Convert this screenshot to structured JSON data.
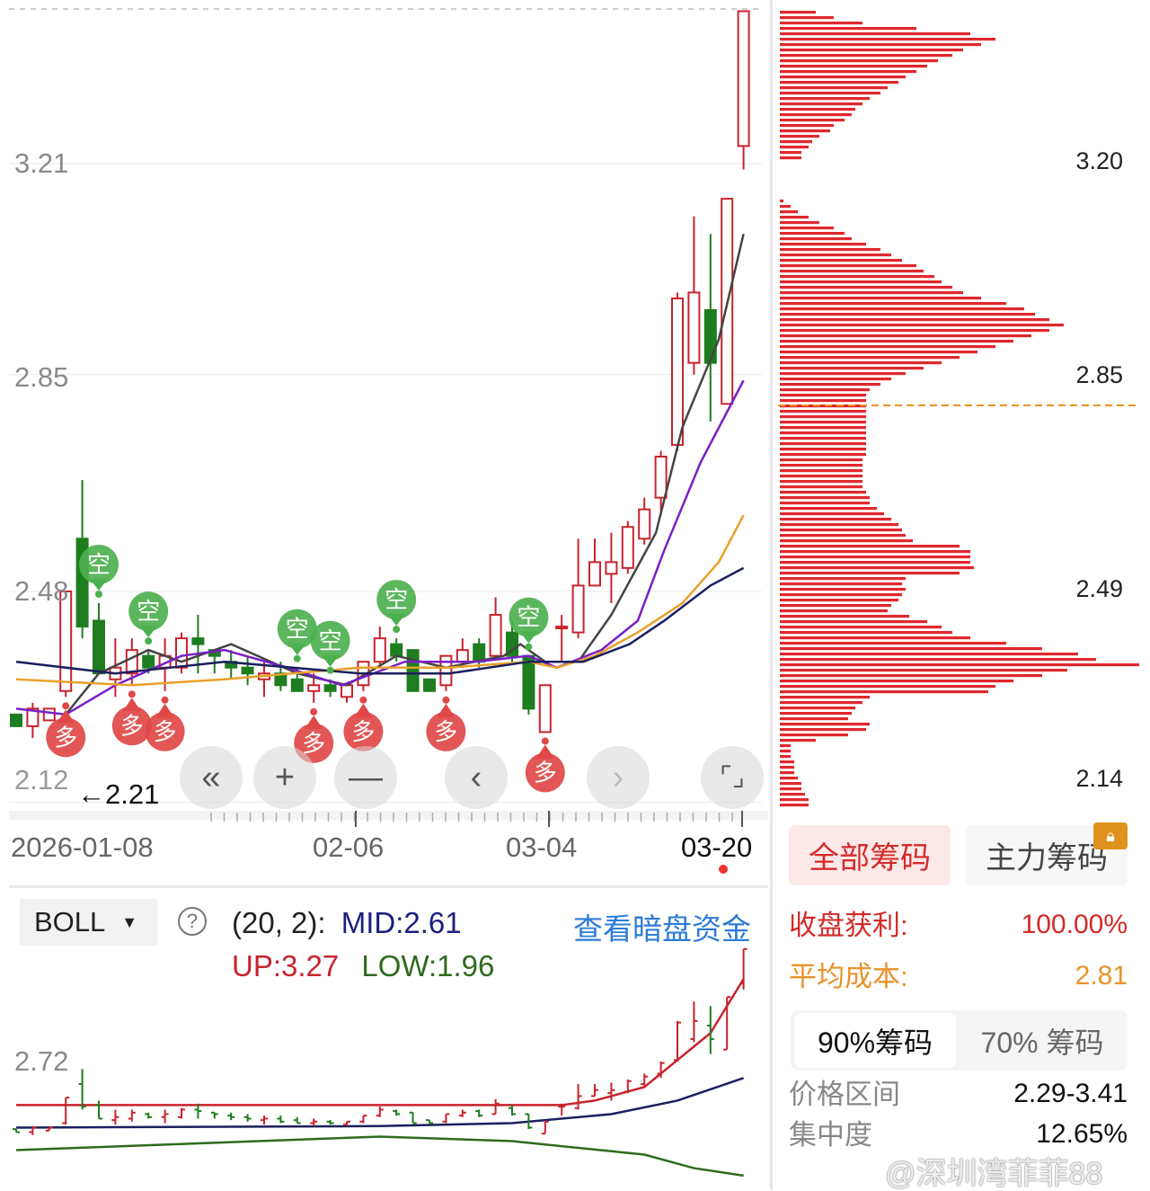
{
  "chart_data": [
    {
      "type": "candlestick",
      "title": "",
      "y_ticks": [
        "3.21",
        "2.85",
        "2.48",
        "2.12"
      ],
      "ylim": [
        2.12,
        3.47
      ],
      "x_tick_labels": [
        "2026-01-08",
        "02-06",
        "03-04",
        "03-20"
      ],
      "last_low_marker": "←2.21",
      "colors": {
        "up": "#c8232c",
        "down": "#1e7d1e",
        "ma1": "#444444",
        "ma2": "#7a1fc7",
        "ma3": "#e8a12a",
        "ma4": "#1b1f5e"
      },
      "candles_ohlc": [
        [
          2.27,
          2.27,
          2.25,
          2.25
        ],
        [
          2.25,
          2.29,
          2.23,
          2.28
        ],
        [
          2.26,
          2.28,
          2.26,
          2.28
        ],
        [
          2.31,
          2.48,
          2.3,
          2.48
        ],
        [
          2.57,
          2.67,
          2.4,
          2.42
        ],
        [
          2.43,
          2.46,
          2.34,
          2.34
        ],
        [
          2.33,
          2.4,
          2.3,
          2.35
        ],
        [
          2.34,
          2.4,
          2.32,
          2.38
        ],
        [
          2.37,
          2.38,
          2.34,
          2.35
        ],
        [
          2.35,
          2.4,
          2.31,
          2.37
        ],
        [
          2.35,
          2.41,
          2.34,
          2.4
        ],
        [
          2.4,
          2.44,
          2.34,
          2.39
        ],
        [
          2.38,
          2.38,
          2.34,
          2.37
        ],
        [
          2.36,
          2.38,
          2.33,
          2.35
        ],
        [
          2.35,
          2.37,
          2.32,
          2.34
        ],
        [
          2.33,
          2.36,
          2.3,
          2.34
        ],
        [
          2.34,
          2.36,
          2.31,
          2.32
        ],
        [
          2.33,
          2.35,
          2.31,
          2.31
        ],
        [
          2.31,
          2.34,
          2.29,
          2.32
        ],
        [
          2.32,
          2.33,
          2.3,
          2.31
        ],
        [
          2.3,
          2.32,
          2.29,
          2.32
        ],
        [
          2.32,
          2.36,
          2.31,
          2.36
        ],
        [
          2.36,
          2.42,
          2.35,
          2.4
        ],
        [
          2.39,
          2.4,
          2.36,
          2.37
        ],
        [
          2.38,
          2.38,
          2.31,
          2.31
        ],
        [
          2.33,
          2.33,
          2.31,
          2.31
        ],
        [
          2.32,
          2.37,
          2.31,
          2.37
        ],
        [
          2.36,
          2.4,
          2.35,
          2.38
        ],
        [
          2.39,
          2.4,
          2.35,
          2.36
        ],
        [
          2.37,
          2.47,
          2.37,
          2.44
        ],
        [
          2.41,
          2.43,
          2.36,
          2.37
        ],
        [
          2.37,
          2.37,
          2.27,
          2.28
        ],
        [
          2.24,
          2.32,
          2.24,
          2.32
        ],
        [
          2.42,
          2.44,
          2.36,
          2.42
        ],
        [
          2.41,
          2.57,
          2.4,
          2.49
        ],
        [
          2.49,
          2.57,
          2.49,
          2.53
        ],
        [
          2.51,
          2.58,
          2.46,
          2.53
        ],
        [
          2.52,
          2.6,
          2.51,
          2.59
        ],
        [
          2.57,
          2.64,
          2.56,
          2.62
        ],
        [
          2.64,
          2.72,
          2.61,
          2.71
        ],
        [
          2.73,
          2.99,
          2.72,
          2.98
        ],
        [
          2.87,
          3.12,
          2.85,
          2.99
        ],
        [
          2.96,
          3.09,
          2.77,
          2.87
        ],
        [
          2.8,
          3.15,
          2.8,
          3.15
        ],
        [
          3.24,
          3.47,
          3.2,
          3.47
        ]
      ],
      "moving_averages": [
        {
          "color_key": "ma1",
          "points": [
            [
              3,
              2.27
            ],
            [
              5,
              2.34
            ],
            [
              8,
              2.38
            ],
            [
              10,
              2.36
            ],
            [
              13,
              2.39
            ],
            [
              17,
              2.34
            ],
            [
              20,
              2.32
            ],
            [
              23,
              2.37
            ],
            [
              26,
              2.35
            ],
            [
              29.5,
              2.37
            ],
            [
              30.5,
              2.39
            ],
            [
              32,
              2.36
            ],
            [
              34,
              2.36
            ],
            [
              36,
              2.44
            ],
            [
              38.7,
              2.58
            ],
            [
              40.3,
              2.76
            ],
            [
              42.5,
              2.91
            ],
            [
              44,
              3.09
            ]
          ]
        },
        {
          "color_key": "ma2",
          "points": [
            [
              0,
              2.28
            ],
            [
              3,
              2.27
            ],
            [
              6,
              2.32
            ],
            [
              10,
              2.37
            ],
            [
              12.6,
              2.38
            ],
            [
              16.4,
              2.35
            ],
            [
              19.7,
              2.32
            ],
            [
              23.5,
              2.36
            ],
            [
              27.8,
              2.36
            ],
            [
              31,
              2.37
            ],
            [
              32.7,
              2.35
            ],
            [
              35.4,
              2.38
            ],
            [
              37.6,
              2.43
            ],
            [
              39.2,
              2.55
            ],
            [
              41.4,
              2.7
            ],
            [
              44,
              2.84
            ]
          ]
        },
        {
          "color_key": "ma3",
          "points": [
            [
              0,
              2.33
            ],
            [
              7,
              2.32
            ],
            [
              12.6,
              2.33
            ],
            [
              20.8,
              2.35
            ],
            [
              26.2,
              2.35
            ],
            [
              31,
              2.36
            ],
            [
              32.7,
              2.35
            ],
            [
              35,
              2.37
            ],
            [
              37.6,
              2.41
            ],
            [
              40.3,
              2.46
            ],
            [
              42.5,
              2.53
            ],
            [
              44,
              2.61
            ]
          ]
        },
        {
          "color_key": "ma4",
          "points": [
            [
              0,
              2.36
            ],
            [
              6,
              2.34
            ],
            [
              12.6,
              2.36
            ],
            [
              20.8,
              2.34
            ],
            [
              26.2,
              2.34
            ],
            [
              31,
              2.36
            ],
            [
              34.3,
              2.36
            ],
            [
              37.1,
              2.39
            ],
            [
              39.2,
              2.43
            ],
            [
              42,
              2.49
            ],
            [
              44,
              2.52
            ]
          ]
        }
      ],
      "signals": [
        {
          "index": 5,
          "type": "short",
          "label": "空"
        },
        {
          "index": 8,
          "type": "short",
          "label": "空"
        },
        {
          "index": 17,
          "type": "short",
          "label": "空"
        },
        {
          "index": 19,
          "type": "short",
          "label": "空"
        },
        {
          "index": 23,
          "type": "short",
          "label": "空"
        },
        {
          "index": 31,
          "type": "short",
          "label": "空"
        },
        {
          "index": 3,
          "type": "long",
          "label": "多"
        },
        {
          "index": 7,
          "type": "long",
          "label": "多"
        },
        {
          "index": 9,
          "type": "long",
          "label": "多"
        },
        {
          "index": 18,
          "type": "long",
          "label": "多"
        },
        {
          "index": 21,
          "type": "long",
          "label": "多"
        },
        {
          "index": 26,
          "type": "long",
          "label": "多"
        },
        {
          "index": 32,
          "type": "long",
          "label": "多"
        }
      ]
    },
    {
      "type": "bar",
      "orientation": "horizontal",
      "title": "",
      "price_labels": [
        "3.20",
        "2.85",
        "2.49",
        "2.14"
      ],
      "avg_cost_line": 2.81,
      "color": "#e0282e",
      "levels_percent_top_to_bottom": [
        10,
        15,
        23,
        38,
        53,
        60,
        56,
        51,
        48,
        44,
        41,
        38,
        35,
        33,
        30,
        28,
        25,
        23,
        21,
        20,
        18,
        15,
        14,
        11,
        9,
        8,
        6,
        6,
        0,
        0,
        0,
        0,
        0,
        0,
        0,
        1,
        3,
        5,
        8,
        11,
        15,
        18,
        20,
        24,
        28,
        31,
        34,
        38,
        40,
        43,
        45,
        48,
        51,
        56,
        63,
        68,
        71,
        75,
        79,
        75,
        70,
        65,
        60,
        55,
        50,
        45,
        40,
        35,
        31,
        28,
        25,
        24,
        24,
        24,
        24,
        24,
        24,
        24,
        24,
        24,
        24,
        24,
        24,
        23,
        23,
        23,
        23,
        23,
        23,
        24,
        25,
        25,
        27,
        29,
        31,
        33,
        34,
        35,
        37,
        50,
        53,
        53,
        53,
        54,
        50,
        35,
        34,
        35,
        34,
        33,
        31,
        30,
        36,
        41,
        45,
        48,
        53,
        63,
        73,
        83,
        88,
        100,
        80,
        73,
        65,
        60,
        58,
        25,
        23,
        21,
        20,
        19,
        25,
        24,
        19,
        10,
        3,
        3,
        3,
        4,
        4,
        4,
        5,
        6,
        6,
        7,
        8,
        8
      ]
    },
    {
      "type": "line",
      "title": "",
      "indicator": "BOLL",
      "y_ticks": [
        "2.72"
      ],
      "series": [
        {
          "name": "UP",
          "color": "#c8232c",
          "points": [
            [
              0,
              2.43
            ],
            [
              33,
              2.43
            ],
            [
              35,
              2.46
            ],
            [
              38,
              2.55
            ],
            [
              40,
              2.73
            ],
            [
              42,
              2.91
            ],
            [
              44,
              3.27
            ]
          ]
        },
        {
          "name": "MID",
          "color": "#1b1f5e",
          "points": [
            [
              0,
              2.28
            ],
            [
              22,
              2.29
            ],
            [
              30,
              2.31
            ],
            [
              36,
              2.37
            ],
            [
              40,
              2.46
            ],
            [
              44,
              2.61
            ]
          ]
        },
        {
          "name": "LOW",
          "color": "#2f6a1e",
          "points": [
            [
              0,
              2.13
            ],
            [
              22,
              2.22
            ],
            [
              30,
              2.19
            ],
            [
              38,
              2.1
            ],
            [
              41,
              2.01
            ],
            [
              44,
              1.96
            ]
          ]
        }
      ]
    }
  ],
  "nav": {
    "buttons": [
      "double-chevron-left-icon",
      "plus-icon",
      "minus-icon",
      "chevron-left-icon",
      "chevron-right-icon",
      "fullscreen-icon"
    ],
    "glyphs": [
      "«",
      "+",
      "—",
      "‹",
      "›",
      "⌜⌟"
    ]
  },
  "boll_header": {
    "indicator": "BOLL",
    "params": "(20, 2):",
    "mid": "MID:2.61",
    "up": "UP:3.27",
    "low": "LOW:1.96",
    "link": "查看暗盘资金",
    "help": "?"
  },
  "chips_panel": {
    "tabs": [
      {
        "label": "全部筹码",
        "active": true
      },
      {
        "label": "主力筹码",
        "active": false,
        "locked": true
      }
    ],
    "profit_label": "收盘获利:",
    "profit_value": "100.00%",
    "avg_cost_label": "平均成本:",
    "avg_cost_value": "2.81",
    "subtabs": [
      {
        "label": "90%筹码",
        "active": true
      },
      {
        "label": "70% 筹码",
        "active": false
      }
    ],
    "range_label": "价格区间",
    "range_value": "2.29-3.41",
    "concentration_label": "集中度",
    "concentration_value": "12.65%"
  },
  "watermark": "@深圳湾菲菲88"
}
